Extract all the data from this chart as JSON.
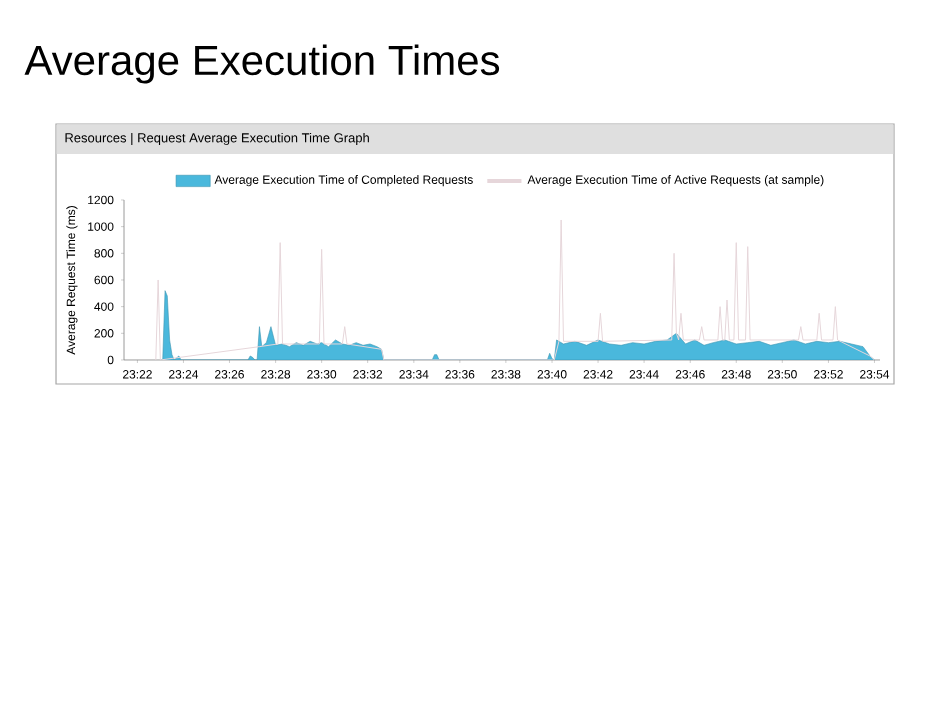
{
  "chart_data": {
    "type": "area",
    "title": "Average Execution Times",
    "subtitle": "Resources | Request Average Execution Time Graph",
    "ylabel": "Average Request Time (ms)",
    "xlim": [
      23.357,
      23.904
    ],
    "ylim": [
      0,
      1200
    ],
    "yticks": [
      0,
      200,
      400,
      600,
      800,
      1000,
      1200
    ],
    "xticks": [
      {
        "value": 23.3667,
        "label": "23:22"
      },
      {
        "value": 23.4,
        "label": "23:24"
      },
      {
        "value": 23.4333,
        "label": "23:26"
      },
      {
        "value": 23.4667,
        "label": "23:28"
      },
      {
        "value": 23.5,
        "label": "23:30"
      },
      {
        "value": 23.5333,
        "label": "23:32"
      },
      {
        "value": 23.5667,
        "label": "23:34"
      },
      {
        "value": 23.6,
        "label": "23:36"
      },
      {
        "value": 23.6333,
        "label": "23:38"
      },
      {
        "value": 23.6667,
        "label": "23:40"
      },
      {
        "value": 23.7,
        "label": "23:42"
      },
      {
        "value": 23.7333,
        "label": "23:44"
      },
      {
        "value": 23.7667,
        "label": "23:46"
      },
      {
        "value": 23.8,
        "label": "23:48"
      },
      {
        "value": 23.8333,
        "label": "23:50"
      },
      {
        "value": 23.8667,
        "label": "23:52"
      },
      {
        "value": 23.9,
        "label": "23:54"
      }
    ],
    "legend": "top",
    "grid": false,
    "series": [
      {
        "name": "Average Execution Time of Completed Requests",
        "color": "#4ab8dc",
        "x": [
          23.3833,
          23.385,
          23.3867,
          23.3883,
          23.39,
          23.3917,
          23.3933,
          23.3967,
          23.3983,
          23.4467,
          23.4483,
          23.45,
          23.4517,
          23.4533,
          23.455,
          23.4567,
          23.46,
          23.4633,
          23.4667,
          23.4717,
          23.4767,
          23.4817,
          23.4867,
          23.4917,
          23.4967,
          23.5,
          23.505,
          23.51,
          23.515,
          23.52,
          23.525,
          23.53,
          23.535,
          23.54,
          23.5433,
          23.545,
          23.58,
          23.5817,
          23.5833,
          23.585,
          23.6633,
          23.665,
          23.6667,
          23.6683,
          23.67,
          23.675,
          23.6833,
          23.6917,
          23.7,
          23.7083,
          23.7167,
          23.725,
          23.7333,
          23.7417,
          23.75,
          23.7567,
          23.7633,
          23.77,
          23.7767,
          23.7833,
          23.7917,
          23.8,
          23.8083,
          23.8167,
          23.825,
          23.8333,
          23.8417,
          23.85,
          23.8583,
          23.8667,
          23.875,
          23.8833,
          23.8917,
          23.8967,
          23.9
        ],
        "values": [
          0,
          0,
          520,
          480,
          150,
          40,
          0,
          30,
          0,
          0,
          30,
          20,
          0,
          0,
          250,
          100,
          130,
          250,
          110,
          120,
          100,
          130,
          110,
          140,
          120,
          130,
          100,
          150,
          120,
          110,
          130,
          110,
          120,
          100,
          80,
          0,
          0,
          40,
          40,
          0,
          0,
          50,
          10,
          0,
          150,
          120,
          140,
          110,
          150,
          120,
          110,
          130,
          120,
          140,
          150,
          200,
          120,
          150,
          110,
          130,
          150,
          120,
          130,
          140,
          110,
          130,
          150,
          120,
          140,
          130,
          140,
          120,
          100,
          30,
          0
        ]
      },
      {
        "name": "Average Execution Time of Active Requests (at sample)",
        "type": "line",
        "color": "#e6d6da",
        "x": [
          23.38,
          23.3817,
          23.3833,
          23.455,
          23.4683,
          23.47,
          23.4717,
          23.4983,
          23.5,
          23.5017,
          23.515,
          23.5167,
          23.5183,
          23.5433,
          23.545,
          23.6683,
          23.6717,
          23.6733,
          23.675,
          23.7,
          23.7017,
          23.7033,
          23.7533,
          23.755,
          23.7567,
          23.7583,
          23.76,
          23.7617,
          23.7733,
          23.775,
          23.7767,
          23.7867,
          23.7883,
          23.79,
          23.7917,
          23.7933,
          23.795,
          23.7983,
          23.8,
          23.8017,
          23.8067,
          23.8083,
          23.81,
          23.845,
          23.8467,
          23.8483,
          23.8583,
          23.86,
          23.8617,
          23.87,
          23.8717,
          23.8733,
          23.8967,
          23.9
        ],
        "values": [
          0,
          600,
          0,
          100,
          120,
          880,
          120,
          120,
          830,
          120,
          120,
          250,
          120,
          80,
          0,
          0,
          140,
          1050,
          140,
          140,
          350,
          140,
          150,
          800,
          200,
          150,
          350,
          150,
          150,
          250,
          150,
          150,
          400,
          150,
          150,
          450,
          150,
          150,
          880,
          150,
          150,
          850,
          150,
          150,
          250,
          150,
          150,
          350,
          150,
          150,
          400,
          150,
          30,
          0
        ]
      }
    ]
  }
}
